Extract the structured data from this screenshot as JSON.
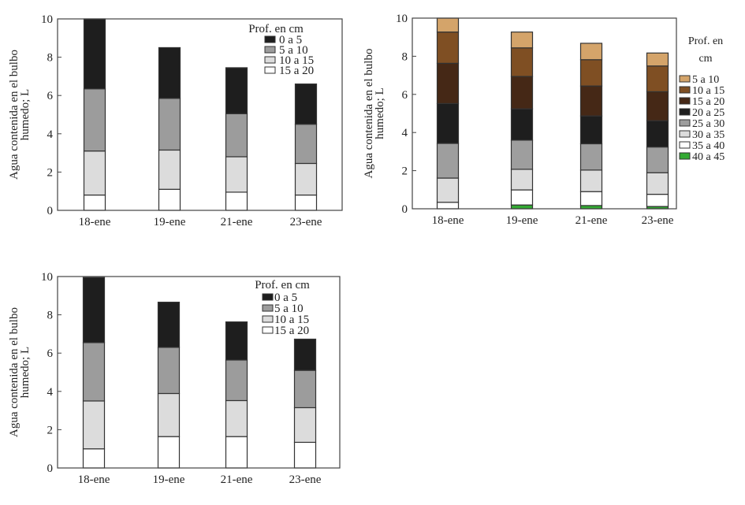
{
  "chart_data": [
    {
      "type": "bar",
      "stacked": true,
      "title": "",
      "ylabel": [
        "Agua contenida en el bulbo",
        "humedo; L"
      ],
      "xlabel": "",
      "ylim": [
        0,
        10
      ],
      "yticks": [
        "0",
        "2",
        "4",
        "6",
        "8",
        "10"
      ],
      "categories": [
        "18-ene",
        "19-ene",
        "21-ene",
        "23-ene"
      ],
      "legend_title": [
        "Prof. en cm"
      ],
      "legend_placement": "top-right",
      "series": [
        {
          "name": "15 a 20",
          "color": "#ffffff",
          "values": [
            0.8,
            1.1,
            0.95,
            0.8
          ]
        },
        {
          "name": "10 a 15",
          "color": "#dcdcdc",
          "values": [
            2.3,
            2.05,
            1.85,
            1.65
          ]
        },
        {
          "name": "5 a 10",
          "color": "#9c9c9c",
          "values": [
            3.25,
            2.7,
            2.25,
            2.05
          ]
        },
        {
          "name": "0 a 5",
          "color": "#1e1e1e",
          "values": [
            3.65,
            2.65,
            2.4,
            2.1
          ]
        }
      ]
    },
    {
      "type": "bar",
      "stacked": true,
      "title": "",
      "ylabel": [
        "Agua contenida en el bulbo",
        "humedo; L"
      ],
      "xlabel": "",
      "ylim": [
        0,
        10
      ],
      "yticks": [
        "0",
        "2",
        "4",
        "6",
        "8",
        "10"
      ],
      "categories": [
        "18-ene",
        "19-ene",
        "21-ene",
        "23-ene"
      ],
      "legend_title": [
        "Prof. en",
        "cm"
      ],
      "legend_placement": "right-outside",
      "series": [
        {
          "name": "40 a 45",
          "color": "#33aa33",
          "values": [
            0,
            0.2,
            0.17,
            0.12
          ]
        },
        {
          "name": "35 a 40",
          "color": "#ffffff",
          "values": [
            0.34,
            0.79,
            0.73,
            0.64
          ]
        },
        {
          "name": "30 a 35",
          "color": "#dcdcdc",
          "values": [
            1.27,
            1.08,
            1.13,
            1.13
          ]
        },
        {
          "name": "25 a 30",
          "color": "#9e9e9e",
          "values": [
            1.82,
            1.53,
            1.38,
            1.35
          ]
        },
        {
          "name": "20 a 25",
          "color": "#1e1e1e",
          "values": [
            2.09,
            1.64,
            1.46,
            1.38
          ]
        },
        {
          "name": "15 a 20",
          "color": "#452816",
          "values": [
            2.11,
            1.7,
            1.57,
            1.52
          ]
        },
        {
          "name": "10 a 15",
          "color": "#7f4f23",
          "values": [
            1.64,
            1.5,
            1.38,
            1.35
          ]
        },
        {
          "name": "5 a 10",
          "color": "#d4a46a",
          "values": [
            0.73,
            0.83,
            0.86,
            0.68
          ]
        }
      ]
    },
    {
      "type": "bar",
      "stacked": true,
      "title": "",
      "ylabel": [
        "Agua contenida en el bulbo",
        "humedo; L"
      ],
      "xlabel": "",
      "ylim": [
        0,
        10
      ],
      "yticks": [
        "0",
        "2",
        "4",
        "6",
        "8",
        "10"
      ],
      "categories": [
        "18-ene",
        "19-ene",
        "21-ene",
        "23-ene"
      ],
      "legend_title": [
        "Prof. en cm"
      ],
      "legend_placement": "top-right",
      "series": [
        {
          "name": "15 a 20",
          "color": "#ffffff",
          "values": [
            1.0,
            1.64,
            1.64,
            1.34
          ]
        },
        {
          "name": "10 a 15",
          "color": "#dcdcdc",
          "values": [
            2.5,
            2.25,
            1.88,
            1.81
          ]
        },
        {
          "name": "5 a 10",
          "color": "#9c9c9c",
          "values": [
            3.05,
            2.41,
            2.12,
            1.95
          ]
        },
        {
          "name": "0 a 5",
          "color": "#1e1e1e",
          "values": [
            3.4,
            2.36,
            1.99,
            1.63
          ]
        }
      ]
    }
  ]
}
